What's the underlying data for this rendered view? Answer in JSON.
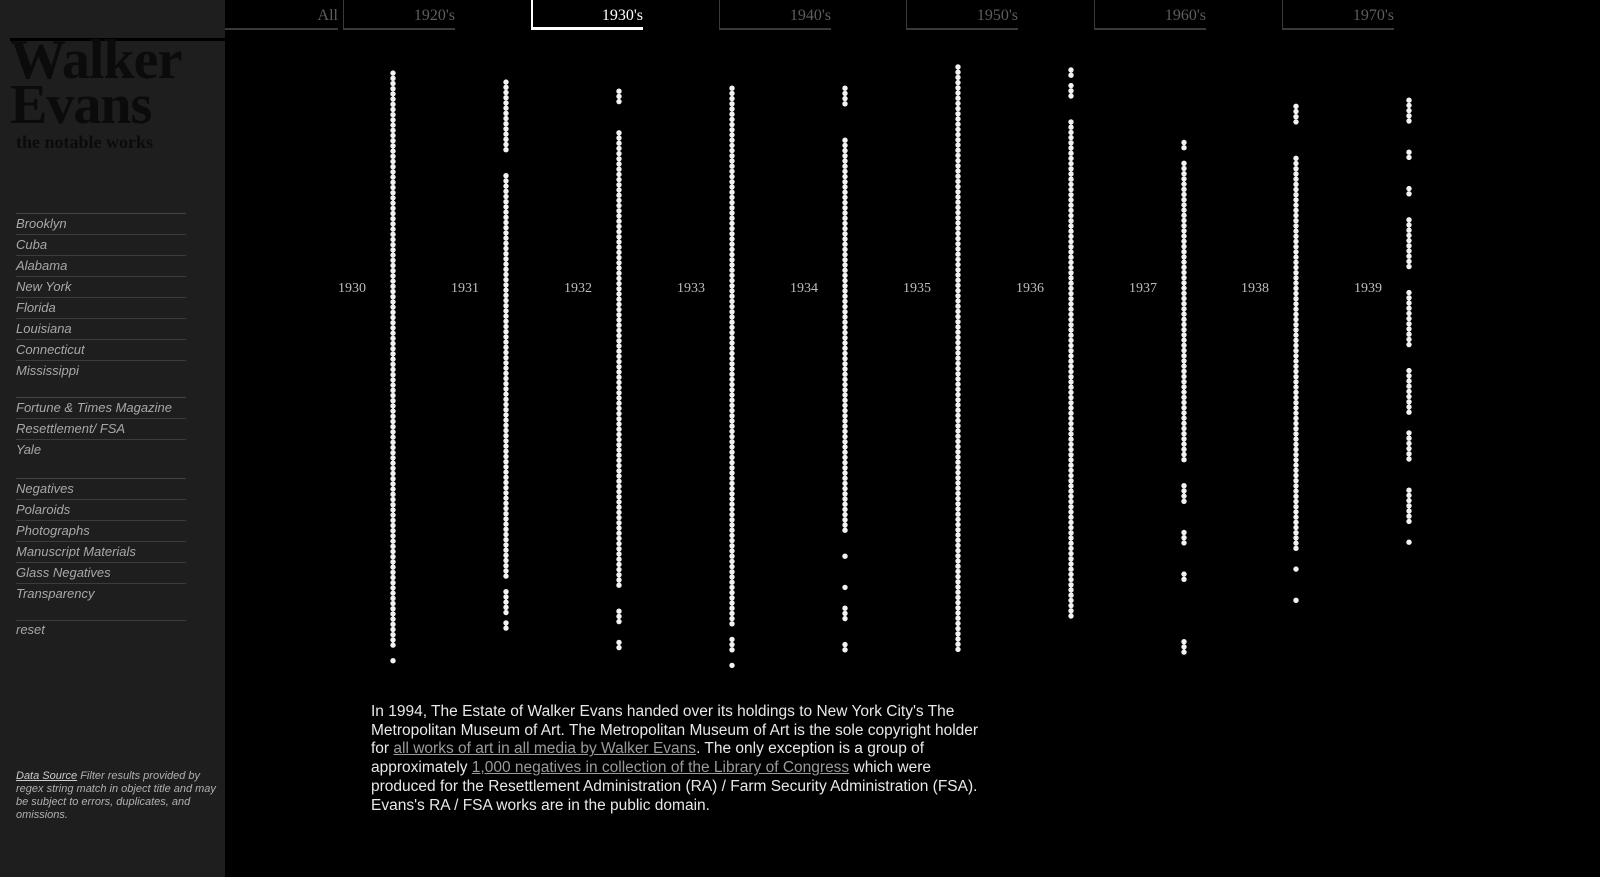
{
  "sidebar": {
    "title_line1": "Walker",
    "title_line2": "Evans",
    "subtitle": "the notable works",
    "places": [
      "Brooklyn",
      "Cuba",
      "Alabama",
      "New York",
      "Florida",
      "Louisiana",
      "Connecticut",
      "Mississippi"
    ],
    "projects": [
      "Fortune & Times Magazine",
      "Resettlement/ FSA",
      "Yale"
    ],
    "media": [
      "Negatives",
      "Polaroids",
      "Photographs",
      "Manuscript Materials",
      "Glass Negatives",
      "Transparency"
    ],
    "reset": "reset",
    "note_link": "Data Source",
    "note_text": " Filter results provided by regex string match in object title and may be subject to errors, duplicates, and omissions."
  },
  "decades": {
    "tabs": [
      "All",
      "1920's",
      "1930's",
      "1940's",
      "1950's",
      "1960's",
      "1970's"
    ],
    "active": "1930's"
  },
  "years": [
    "1930",
    "1931",
    "1932",
    "1933",
    "1934",
    "1935",
    "1936",
    "1937",
    "1938",
    "1939"
  ],
  "year_columns": [
    {
      "year": "1930",
      "start": 0.015,
      "end": 0.99,
      "gaps": [
        [
          0.97,
          0.985
        ]
      ]
    },
    {
      "year": "1931",
      "start": 0.03,
      "end": 0.935,
      "gaps": [
        [
          0.15,
          0.18
        ],
        [
          0.85,
          0.87
        ],
        [
          0.91,
          0.925
        ]
      ]
    },
    {
      "year": "1932",
      "start": 0.045,
      "end": 0.97,
      "gaps": [
        [
          0.07,
          0.11
        ],
        [
          0.87,
          0.9
        ],
        [
          0.93,
          0.95
        ]
      ]
    },
    {
      "year": "1933",
      "start": 0.04,
      "end": 1.0,
      "gaps": [
        [
          0.93,
          0.95
        ],
        [
          0.97,
          0.99
        ]
      ]
    },
    {
      "year": "1934",
      "start": 0.04,
      "end": 0.97,
      "gaps": [
        [
          0.07,
          0.12
        ],
        [
          0.78,
          0.81
        ],
        [
          0.82,
          0.86
        ],
        [
          0.87,
          0.9
        ],
        [
          0.92,
          0.96
        ]
      ]
    },
    {
      "year": "1935",
      "start": 0.005,
      "end": 0.975,
      "gaps": []
    },
    {
      "year": "1936",
      "start": 0.01,
      "end": 0.92,
      "gaps": [
        [
          0.02,
          0.035
        ],
        [
          0.06,
          0.09
        ]
      ]
    },
    {
      "year": "1937",
      "start": 0.13,
      "end": 0.975,
      "gaps": [
        [
          0.14,
          0.16
        ],
        [
          0.66,
          0.69
        ],
        [
          0.73,
          0.77
        ],
        [
          0.8,
          0.84
        ],
        [
          0.86,
          0.95
        ]
      ]
    },
    {
      "year": "1938",
      "start": 0.07,
      "end": 0.89,
      "gaps": [
        [
          0.1,
          0.15
        ],
        [
          0.81,
          0.83
        ],
        [
          0.84,
          0.88
        ]
      ]
    },
    {
      "year": "1939",
      "start": 0.06,
      "end": 0.8,
      "gaps": [
        [
          0.1,
          0.14
        ],
        [
          0.16,
          0.2
        ],
        [
          0.22,
          0.25
        ],
        [
          0.34,
          0.37
        ],
        [
          0.47,
          0.5
        ],
        [
          0.58,
          0.61
        ],
        [
          0.66,
          0.7
        ],
        [
          0.76,
          0.79
        ]
      ]
    }
  ],
  "about": {
    "p1": "In 1994, The Estate of Walker Evans handed over its holdings to New York City's The Metropolitan Museum of Art. The Metropolitan Museum of Art is the sole copyright holder for ",
    "link1": "all works of art in all media by Walker Evans",
    "p2": ". The only exception is a group of approximately ",
    "link2": "1,000 negatives in collection of the Library of Congress",
    "p3": " which were produced for the Resettlement Administration (RA) / Farm Security Administration (FSA). Evans's RA / FSA works are in the public domain."
  },
  "colors": {
    "background": "#000000",
    "sidebar": "#1e1e1e",
    "dot": "#f2f2f2",
    "active_tab": "#ffffff"
  }
}
